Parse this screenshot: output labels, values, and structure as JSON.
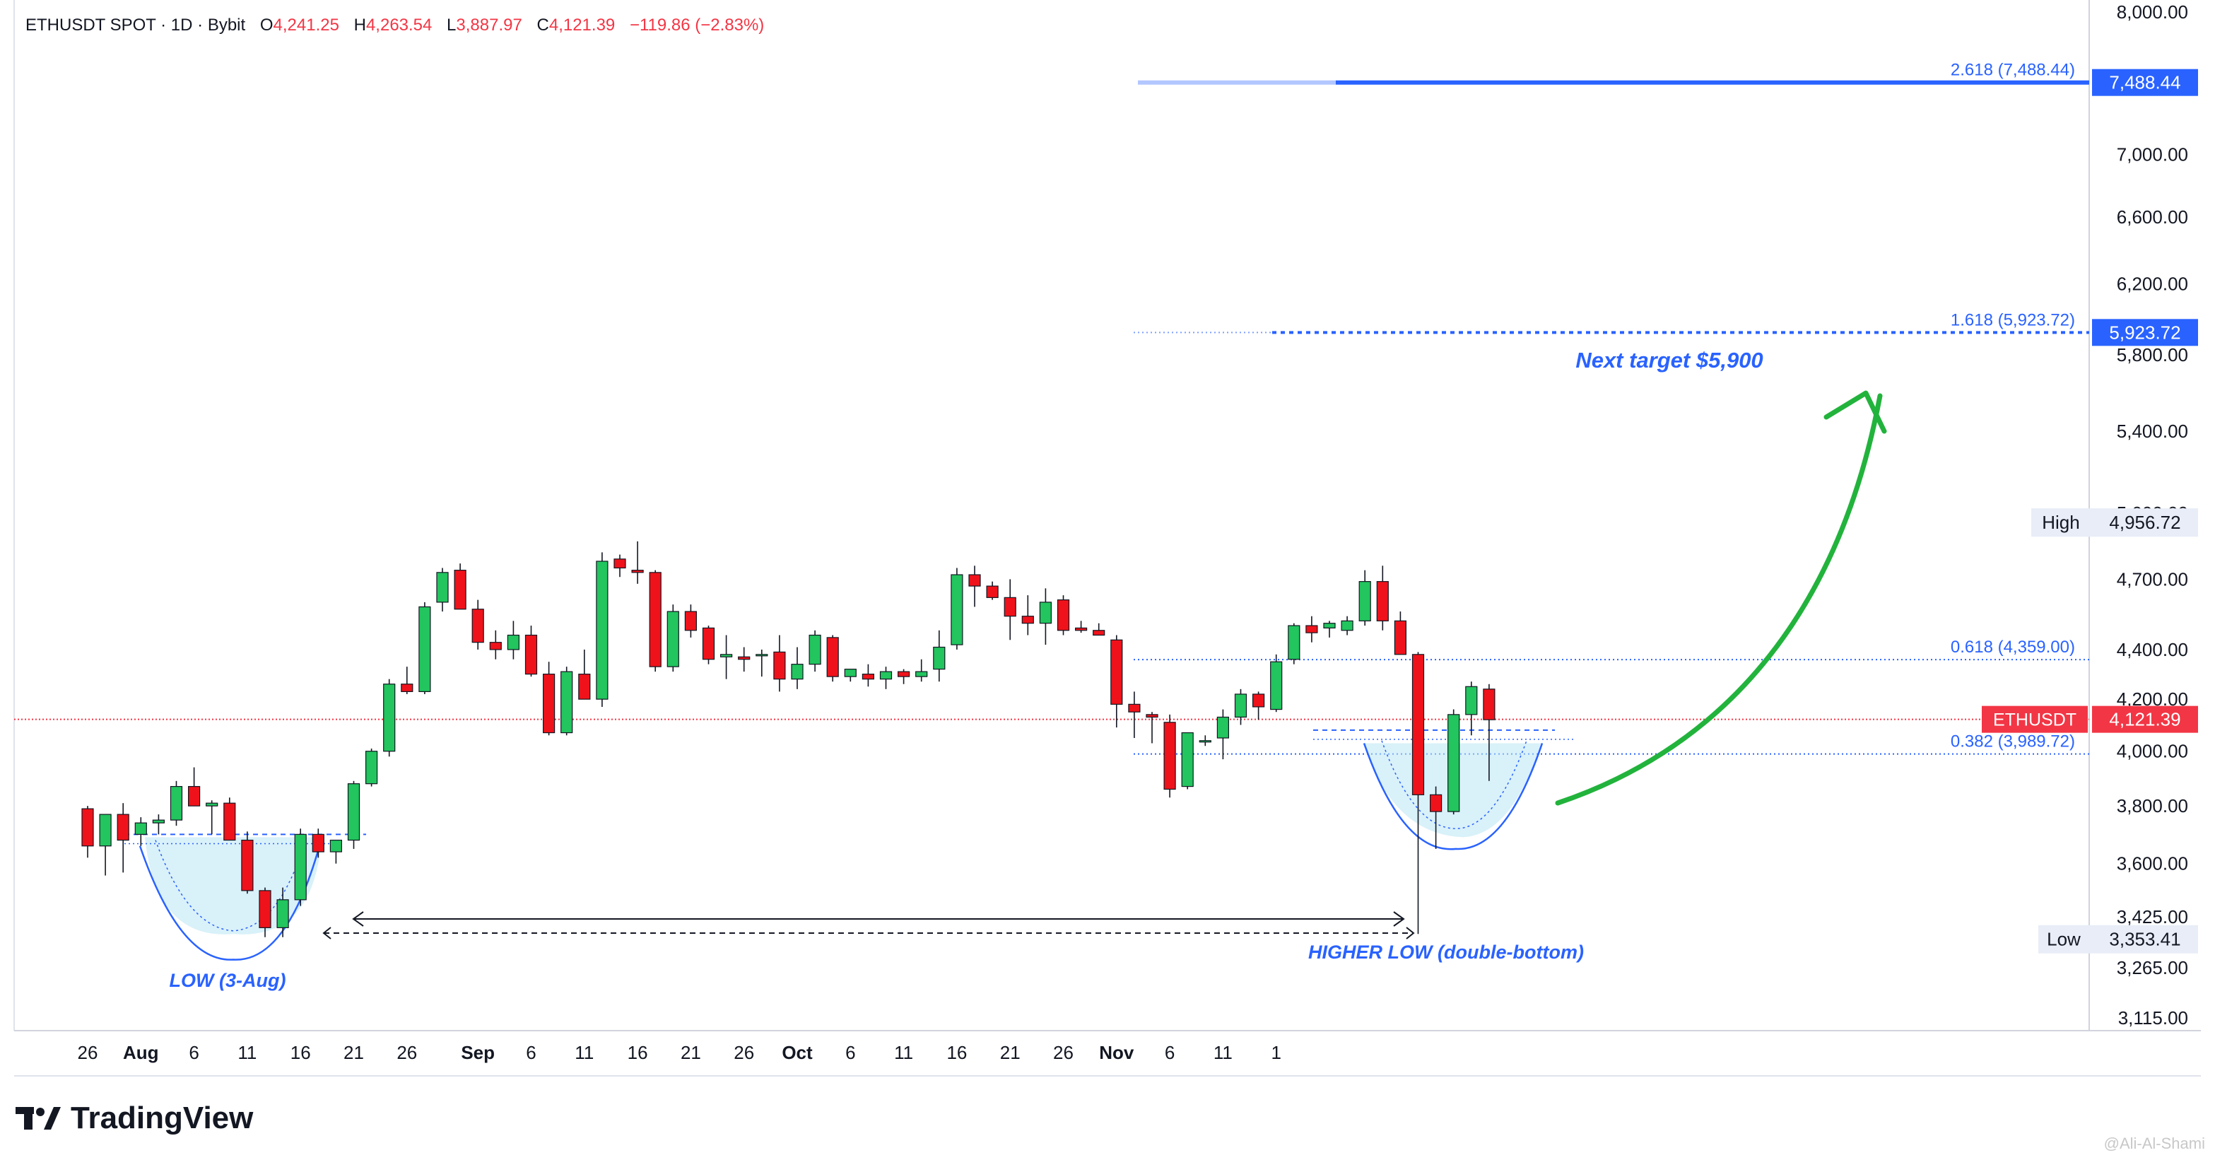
{
  "header": {
    "symbol": "ETHUSDT SPOT · 1D · Bybit",
    "open_label": "O",
    "open": "4,241.25",
    "high_label": "H",
    "high": "4,263.54",
    "low_label": "L",
    "low": "3,887.97",
    "close_label": "C",
    "close": "4,121.39",
    "change": "−119.86 (−2.83%)"
  },
  "brand": {
    "name": "TradingView"
  },
  "watermark": "@Ali-Al-Shami",
  "colors": {
    "up": "#22c55e",
    "down": "#f0121a",
    "accent": "#2962ff",
    "arrow": "#22b33c"
  },
  "chart_data": {
    "type": "candlestick",
    "x_ticks": [
      "26",
      "Aug",
      "6",
      "11",
      "16",
      "21",
      "26",
      "Sep",
      "6",
      "11",
      "16",
      "21",
      "26",
      "Oct",
      "6",
      "11",
      "16",
      "21",
      "26",
      "Nov",
      "6",
      "11",
      "1"
    ],
    "y_ticks": [
      "8,000.00",
      "7,000.00",
      "6,600.00",
      "6,200.00",
      "5,800.00",
      "5,400.00",
      "5,000.00",
      "4,700.00",
      "4,400.00",
      "4,200.00",
      "4,000.00",
      "3,800.00",
      "3,600.00",
      "3,425.00",
      "3,265.00",
      "3,115.00"
    ],
    "y_scale": "log",
    "ylim": [
      3080,
      8200
    ],
    "candles": [
      [
        3790,
        3800,
        3620,
        3660
      ],
      [
        3660,
        3770,
        3560,
        3770
      ],
      [
        3770,
        3810,
        3570,
        3680
      ],
      [
        3700,
        3760,
        3660,
        3740
      ],
      [
        3740,
        3770,
        3700,
        3750
      ],
      [
        3750,
        3890,
        3730,
        3870
      ],
      [
        3870,
        3940,
        3800,
        3800
      ],
      [
        3800,
        3820,
        3700,
        3810
      ],
      [
        3810,
        3830,
        3680,
        3680
      ],
      [
        3680,
        3710,
        3500,
        3510
      ],
      [
        3510,
        3520,
        3360,
        3390
      ],
      [
        3390,
        3520,
        3360,
        3480
      ],
      [
        3480,
        3720,
        3460,
        3700
      ],
      [
        3700,
        3720,
        3620,
        3640
      ],
      [
        3640,
        3680,
        3600,
        3680
      ],
      [
        3680,
        3890,
        3650,
        3880
      ],
      [
        3880,
        4010,
        3870,
        4000
      ],
      [
        4000,
        4280,
        3980,
        4260
      ],
      [
        4260,
        4330,
        4220,
        4230
      ],
      [
        4230,
        4600,
        4220,
        4580
      ],
      [
        4600,
        4750,
        4560,
        4730
      ],
      [
        4740,
        4770,
        4570,
        4570
      ],
      [
        4570,
        4610,
        4400,
        4430
      ],
      [
        4430,
        4480,
        4360,
        4400
      ],
      [
        4400,
        4520,
        4360,
        4460
      ],
      [
        4460,
        4500,
        4290,
        4300
      ],
      [
        4300,
        4350,
        4060,
        4070
      ],
      [
        4070,
        4330,
        4060,
        4310
      ],
      [
        4300,
        4400,
        4200,
        4200
      ],
      [
        4200,
        4820,
        4170,
        4780
      ],
      [
        4790,
        4810,
        4710,
        4750
      ],
      [
        4740,
        4870,
        4680,
        4730
      ],
      [
        4730,
        4740,
        4310,
        4330
      ],
      [
        4330,
        4590,
        4310,
        4560
      ],
      [
        4560,
        4590,
        4450,
        4480
      ],
      [
        4490,
        4500,
        4340,
        4360
      ],
      [
        4370,
        4460,
        4280,
        4380
      ],
      [
        4370,
        4410,
        4310,
        4360
      ],
      [
        4380,
        4400,
        4290,
        4380
      ],
      [
        4390,
        4460,
        4230,
        4280
      ],
      [
        4280,
        4410,
        4240,
        4340
      ],
      [
        4340,
        4480,
        4310,
        4460
      ],
      [
        4450,
        4460,
        4270,
        4290
      ],
      [
        4290,
        4320,
        4270,
        4320
      ],
      [
        4300,
        4340,
        4250,
        4280
      ],
      [
        4280,
        4330,
        4240,
        4310
      ],
      [
        4310,
        4320,
        4260,
        4290
      ],
      [
        4290,
        4360,
        4270,
        4310
      ],
      [
        4320,
        4480,
        4270,
        4410
      ],
      [
        4420,
        4750,
        4400,
        4720
      ],
      [
        4720,
        4760,
        4580,
        4670
      ],
      [
        4670,
        4690,
        4610,
        4620
      ],
      [
        4620,
        4700,
        4440,
        4540
      ],
      [
        4540,
        4630,
        4460,
        4510
      ],
      [
        4510,
        4660,
        4420,
        4600
      ],
      [
        4610,
        4630,
        4460,
        4480
      ],
      [
        4490,
        4520,
        4470,
        4480
      ],
      [
        4480,
        4510,
        4460,
        4460
      ],
      [
        4440,
        4460,
        4090,
        4180
      ],
      [
        4180,
        4230,
        4050,
        4150
      ],
      [
        4140,
        4150,
        4030,
        4130
      ],
      [
        4110,
        4140,
        3830,
        3860
      ],
      [
        3870,
        4070,
        3860,
        4070
      ],
      [
        4040,
        4060,
        4020,
        4040
      ],
      [
        4050,
        4160,
        3970,
        4130
      ],
      [
        4130,
        4240,
        4100,
        4220
      ],
      [
        4220,
        4230,
        4120,
        4170
      ],
      [
        4160,
        4380,
        4150,
        4350
      ],
      [
        4360,
        4510,
        4340,
        4500
      ],
      [
        4500,
        4540,
        4430,
        4470
      ],
      [
        4490,
        4520,
        4450,
        4510
      ],
      [
        4480,
        4540,
        4460,
        4520
      ],
      [
        4520,
        4740,
        4500,
        4690
      ],
      [
        4690,
        4760,
        4480,
        4520
      ],
      [
        4520,
        4560,
        4380,
        4380
      ],
      [
        4380,
        4390,
        3370,
        3840
      ],
      [
        3840,
        3870,
        3650,
        3780
      ],
      [
        3780,
        4160,
        3770,
        4140
      ],
      [
        4140,
        4270,
        4060,
        4250
      ],
      [
        4240,
        4260,
        3890,
        4120
      ]
    ],
    "levels": [
      {
        "name": "2.618 (7,488.44)",
        "value": 7488.44,
        "tag": "7,488.44"
      },
      {
        "name": "1.618 (5,923.72)",
        "value": 5923.72,
        "tag": "5,923.72"
      },
      {
        "name": "0.618 (4,359.00)",
        "value": 4359.0
      },
      {
        "name": "0.382 (3,989.72)",
        "value": 3989.72
      }
    ],
    "last_price": {
      "label": "ETHUSDT",
      "value": 4121.39,
      "text": "4,121.39"
    },
    "high_marker": {
      "label": "High",
      "value": 4956.72,
      "text": "4,956.72"
    },
    "low_marker": {
      "label": "Low",
      "value": 3353.41,
      "text": "3,353.41"
    },
    "annotations": {
      "low_aug": "LOW (3-Aug)",
      "higher_low": "HIGHER LOW (double-bottom)",
      "next_target": "Next target $5,900"
    }
  }
}
